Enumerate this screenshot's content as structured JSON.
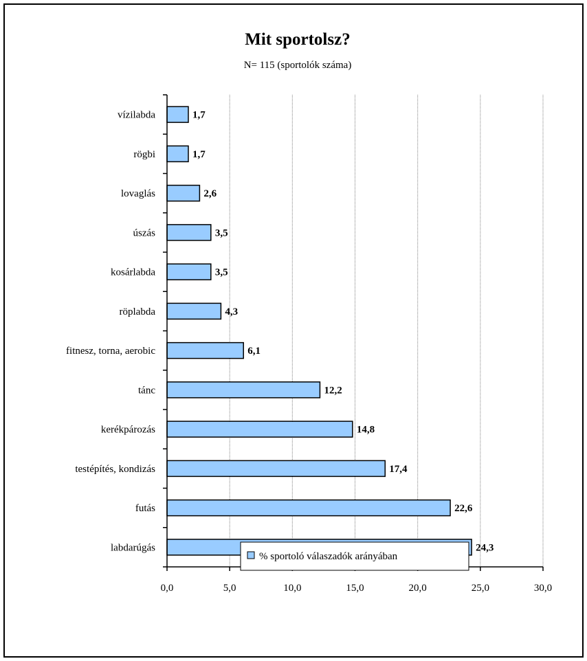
{
  "chart_data": {
    "type": "bar",
    "orientation": "horizontal",
    "title": "Mit sportolsz?",
    "subtitle": "N= 115 (sportolók száma)",
    "categories": [
      "vízilabda",
      "rögbi",
      "lovaglás",
      "úszás",
      "kosárlabda",
      "röplabda",
      "fitnesz, torna, aerobic",
      "tánc",
      "kerékpározás",
      "testépítés, kondizás",
      "futás",
      "labdarúgás"
    ],
    "series": [
      {
        "name": "% sportoló válaszadók arányában",
        "values": [
          1.7,
          1.7,
          2.6,
          3.5,
          3.5,
          4.3,
          6.1,
          12.2,
          14.8,
          17.4,
          22.6,
          24.3
        ],
        "labels": [
          "1,7",
          "1,7",
          "2,6",
          "3,5",
          "3,5",
          "4,3",
          "6,1",
          "12,2",
          "14,8",
          "17,4",
          "22,6",
          "24,3"
        ]
      }
    ],
    "xlim": [
      0,
      30
    ],
    "x_ticks": [
      0,
      5,
      10,
      15,
      20,
      25,
      30
    ],
    "x_tick_labels": [
      "0,0",
      "5,0",
      "10,0",
      "15,0",
      "20,0",
      "25,0",
      "30,0"
    ],
    "xlabel": "",
    "ylabel": "",
    "grid": "vertical, dotted",
    "legend_position": "bottom",
    "colors": {
      "bar_fill": "#99ccff",
      "bar_stroke": "#000000",
      "grid": "#808080"
    }
  }
}
